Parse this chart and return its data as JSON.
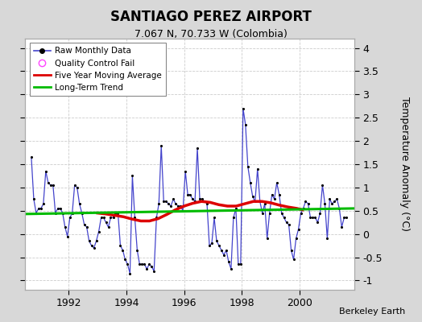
{
  "title": "SANTIAGO PEREZ AIRPORT",
  "subtitle": "7.067 N, 70.733 W (Colombia)",
  "ylabel": "Temperature Anomaly (°C)",
  "credit": "Berkeley Earth",
  "ylim": [
    -1.2,
    4.2
  ],
  "yticks": [
    -1,
    -0.5,
    0,
    0.5,
    1,
    1.5,
    2,
    2.5,
    3,
    3.5,
    4
  ],
  "xlim_start": 1990.5,
  "xlim_end": 2001.9,
  "xticks": [
    1992,
    1994,
    1996,
    1998,
    2000
  ],
  "fig_bg_color": "#d8d8d8",
  "plot_bg_color": "#ffffff",
  "raw_color": "#4444cc",
  "raw_dot_color": "#000000",
  "moving_avg_color": "#dd0000",
  "trend_color": "#00bb00",
  "raw_data": [
    [
      1990.708,
      1.65
    ],
    [
      1990.792,
      0.75
    ],
    [
      1990.875,
      0.45
    ],
    [
      1990.958,
      0.55
    ],
    [
      1991.042,
      0.55
    ],
    [
      1991.125,
      0.65
    ],
    [
      1991.208,
      1.35
    ],
    [
      1991.292,
      1.1
    ],
    [
      1991.375,
      1.05
    ],
    [
      1991.458,
      1.05
    ],
    [
      1991.542,
      0.45
    ],
    [
      1991.625,
      0.55
    ],
    [
      1991.708,
      0.55
    ],
    [
      1991.792,
      0.45
    ],
    [
      1991.875,
      0.15
    ],
    [
      1991.958,
      -0.05
    ],
    [
      1992.042,
      0.35
    ],
    [
      1992.125,
      0.45
    ],
    [
      1992.208,
      1.05
    ],
    [
      1992.292,
      1.0
    ],
    [
      1992.375,
      0.65
    ],
    [
      1992.458,
      0.45
    ],
    [
      1992.542,
      0.2
    ],
    [
      1992.625,
      0.15
    ],
    [
      1992.708,
      -0.15
    ],
    [
      1992.792,
      -0.25
    ],
    [
      1992.875,
      -0.3
    ],
    [
      1992.958,
      -0.15
    ],
    [
      1993.042,
      0.05
    ],
    [
      1993.125,
      0.35
    ],
    [
      1993.208,
      0.35
    ],
    [
      1993.292,
      0.25
    ],
    [
      1993.375,
      0.15
    ],
    [
      1993.458,
      0.35
    ],
    [
      1993.542,
      0.35
    ],
    [
      1993.625,
      0.45
    ],
    [
      1993.708,
      0.45
    ],
    [
      1993.792,
      -0.25
    ],
    [
      1993.875,
      -0.35
    ],
    [
      1993.958,
      -0.55
    ],
    [
      1994.042,
      -0.65
    ],
    [
      1994.125,
      -0.85
    ],
    [
      1994.208,
      1.25
    ],
    [
      1994.292,
      0.35
    ],
    [
      1994.375,
      -0.35
    ],
    [
      1994.458,
      -0.65
    ],
    [
      1994.542,
      -0.65
    ],
    [
      1994.625,
      -0.65
    ],
    [
      1994.708,
      -0.75
    ],
    [
      1994.792,
      -0.65
    ],
    [
      1994.875,
      -0.7
    ],
    [
      1994.958,
      -0.8
    ],
    [
      1995.042,
      0.35
    ],
    [
      1995.125,
      0.65
    ],
    [
      1995.208,
      1.9
    ],
    [
      1995.292,
      0.7
    ],
    [
      1995.375,
      0.7
    ],
    [
      1995.458,
      0.65
    ],
    [
      1995.542,
      0.6
    ],
    [
      1995.625,
      0.75
    ],
    [
      1995.708,
      0.65
    ],
    [
      1995.792,
      0.6
    ],
    [
      1995.875,
      0.6
    ],
    [
      1995.958,
      0.5
    ],
    [
      1996.042,
      1.35
    ],
    [
      1996.125,
      0.85
    ],
    [
      1996.208,
      0.85
    ],
    [
      1996.292,
      0.75
    ],
    [
      1996.375,
      0.7
    ],
    [
      1996.458,
      1.85
    ],
    [
      1996.542,
      0.75
    ],
    [
      1996.625,
      0.75
    ],
    [
      1996.708,
      0.7
    ],
    [
      1996.792,
      0.65
    ],
    [
      1996.875,
      -0.25
    ],
    [
      1996.958,
      -0.2
    ],
    [
      1997.042,
      0.35
    ],
    [
      1997.125,
      -0.15
    ],
    [
      1997.208,
      -0.25
    ],
    [
      1997.292,
      -0.35
    ],
    [
      1997.375,
      -0.45
    ],
    [
      1997.458,
      -0.35
    ],
    [
      1997.542,
      -0.6
    ],
    [
      1997.625,
      -0.75
    ],
    [
      1997.708,
      0.35
    ],
    [
      1997.792,
      0.55
    ],
    [
      1997.875,
      -0.65
    ],
    [
      1997.958,
      -0.65
    ],
    [
      1998.042,
      2.7
    ],
    [
      1998.125,
      2.35
    ],
    [
      1998.208,
      1.45
    ],
    [
      1998.292,
      1.1
    ],
    [
      1998.375,
      0.8
    ],
    [
      1998.458,
      0.7
    ],
    [
      1998.542,
      1.4
    ],
    [
      1998.625,
      0.7
    ],
    [
      1998.708,
      0.45
    ],
    [
      1998.792,
      0.65
    ],
    [
      1998.875,
      -0.1
    ],
    [
      1998.958,
      0.45
    ],
    [
      1999.042,
      0.85
    ],
    [
      1999.125,
      0.75
    ],
    [
      1999.208,
      1.1
    ],
    [
      1999.292,
      0.85
    ],
    [
      1999.375,
      0.45
    ],
    [
      1999.458,
      0.35
    ],
    [
      1999.542,
      0.25
    ],
    [
      1999.625,
      0.2
    ],
    [
      1999.708,
      -0.35
    ],
    [
      1999.792,
      -0.55
    ],
    [
      1999.875,
      -0.1
    ],
    [
      1999.958,
      0.1
    ],
    [
      2000.042,
      0.45
    ],
    [
      2000.125,
      0.55
    ],
    [
      2000.208,
      0.7
    ],
    [
      2000.292,
      0.65
    ],
    [
      2000.375,
      0.35
    ],
    [
      2000.458,
      0.35
    ],
    [
      2000.542,
      0.35
    ],
    [
      2000.625,
      0.25
    ],
    [
      2000.708,
      0.45
    ],
    [
      2000.792,
      1.05
    ],
    [
      2000.875,
      0.65
    ],
    [
      2000.958,
      -0.1
    ],
    [
      2001.042,
      0.75
    ],
    [
      2001.125,
      0.65
    ],
    [
      2001.208,
      0.7
    ],
    [
      2001.292,
      0.75
    ],
    [
      2001.375,
      0.55
    ],
    [
      2001.458,
      0.15
    ],
    [
      2001.542,
      0.35
    ],
    [
      2001.625,
      0.35
    ]
  ],
  "moving_avg_data": [
    [
      1993.0,
      0.45
    ],
    [
      1993.3,
      0.43
    ],
    [
      1993.6,
      0.4
    ],
    [
      1993.9,
      0.37
    ],
    [
      1994.2,
      0.32
    ],
    [
      1994.5,
      0.28
    ],
    [
      1994.8,
      0.28
    ],
    [
      1995.1,
      0.33
    ],
    [
      1995.4,
      0.42
    ],
    [
      1995.7,
      0.52
    ],
    [
      1996.0,
      0.6
    ],
    [
      1996.3,
      0.66
    ],
    [
      1996.6,
      0.7
    ],
    [
      1996.9,
      0.68
    ],
    [
      1997.2,
      0.63
    ],
    [
      1997.5,
      0.6
    ],
    [
      1997.8,
      0.6
    ],
    [
      1998.1,
      0.65
    ],
    [
      1998.4,
      0.7
    ],
    [
      1998.7,
      0.7
    ],
    [
      1999.0,
      0.67
    ],
    [
      1999.3,
      0.62
    ],
    [
      1999.6,
      0.58
    ],
    [
      1999.9,
      0.55
    ],
    [
      2000.1,
      0.52
    ]
  ],
  "trend_data": [
    [
      1990.5,
      0.43
    ],
    [
      2001.9,
      0.55
    ]
  ]
}
